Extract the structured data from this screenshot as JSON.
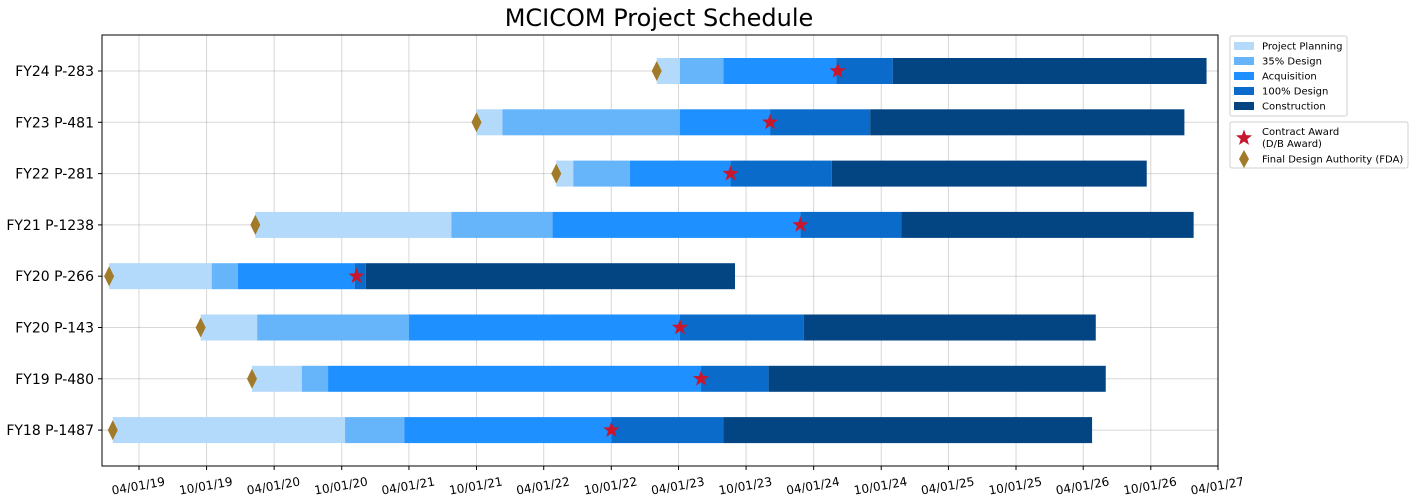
{
  "chart_data": {
    "type": "gantt",
    "title": "MCICOM Project Schedule",
    "xlim": [
      "2019-01-10",
      "2027-04-01"
    ],
    "x_ticks": [
      {
        "date": "2019-04-01",
        "label": "04/01/19"
      },
      {
        "date": "2019-10-01",
        "label": "10/01/19"
      },
      {
        "date": "2020-04-01",
        "label": "04/01/20"
      },
      {
        "date": "2020-10-01",
        "label": "10/01/20"
      },
      {
        "date": "2021-04-01",
        "label": "04/01/21"
      },
      {
        "date": "2021-10-01",
        "label": "10/01/21"
      },
      {
        "date": "2022-04-01",
        "label": "04/01/22"
      },
      {
        "date": "2022-10-01",
        "label": "10/01/22"
      },
      {
        "date": "2023-04-01",
        "label": "04/01/23"
      },
      {
        "date": "2023-10-01",
        "label": "10/01/23"
      },
      {
        "date": "2024-04-01",
        "label": "04/01/24"
      },
      {
        "date": "2024-10-01",
        "label": "10/01/24"
      },
      {
        "date": "2025-04-01",
        "label": "04/01/25"
      },
      {
        "date": "2025-10-01",
        "label": "10/01/25"
      },
      {
        "date": "2026-04-01",
        "label": "04/01/26"
      },
      {
        "date": "2026-10-01",
        "label": "10/01/26"
      },
      {
        "date": "2027-04-01",
        "label": "04/01/27"
      }
    ],
    "phases": [
      {
        "name": "Project Planning",
        "color": "#b3d9fb"
      },
      {
        "name": "35% Design",
        "color": "#66b5fa"
      },
      {
        "name": "Acquisition",
        "color": "#1e90ff"
      },
      {
        "name": "100% Design",
        "color": "#0a6bcb"
      },
      {
        "name": "Construction",
        "color": "#034482"
      }
    ],
    "markers": [
      {
        "name": "Contract Award\n(D/B Award)",
        "shape": "star",
        "color": "#c8172c"
      },
      {
        "name": "Final Design Authority (FDA)",
        "shape": "diamond",
        "color": "#a17b2a"
      }
    ],
    "projects": [
      {
        "label": "FY24 P-283",
        "fda": "2023-02-01",
        "phases": [
          [
            "2023-02-01",
            "2023-04-05"
          ],
          [
            "2023-04-05",
            "2023-08-01"
          ],
          [
            "2023-08-01",
            "2024-06-01"
          ],
          [
            "2024-06-01",
            "2024-11-01"
          ],
          [
            "2024-11-01",
            "2027-03-01"
          ]
        ],
        "award": "2024-06-05"
      },
      {
        "label": "FY23 P-481",
        "fda": "2021-10-01",
        "phases": [
          [
            "2021-10-01",
            "2021-12-10"
          ],
          [
            "2021-12-10",
            "2023-04-05"
          ],
          [
            "2023-04-05",
            "2023-12-05"
          ],
          [
            "2023-12-05",
            "2024-09-01"
          ],
          [
            "2024-09-01",
            "2026-12-31"
          ]
        ],
        "award": "2023-12-05"
      },
      {
        "label": "FY22 P-281",
        "fda": "2022-05-05",
        "phases": [
          [
            "2022-05-05",
            "2022-06-20"
          ],
          [
            "2022-06-20",
            "2022-11-20"
          ],
          [
            "2022-11-20",
            "2023-08-20"
          ],
          [
            "2023-08-20",
            "2024-05-20"
          ],
          [
            "2024-05-20",
            "2026-09-20"
          ]
        ],
        "award": "2023-08-20"
      },
      {
        "label": "FY21 P-1238",
        "fda": "2020-02-10",
        "phases": [
          [
            "2020-02-10",
            "2021-07-25"
          ],
          [
            "2021-07-25",
            "2022-04-25"
          ],
          [
            "2022-04-25",
            "2024-02-25"
          ],
          [
            "2024-02-25",
            "2024-11-25"
          ],
          [
            "2024-11-25",
            "2027-01-25"
          ]
        ],
        "award": "2024-02-25"
      },
      {
        "label": "FY20 P-266",
        "fda": "2019-01-10",
        "phases": [
          [
            "2019-01-10",
            "2019-10-15"
          ],
          [
            "2019-10-15",
            "2019-12-25"
          ],
          [
            "2019-12-25",
            "2020-11-05"
          ],
          [
            "2020-11-05",
            "2020-12-05"
          ],
          [
            "2020-12-05",
            "2023-09-01"
          ]
        ],
        "award": "2020-11-10"
      },
      {
        "label": "FY20 P-143",
        "fda": "2019-09-15",
        "phases": [
          [
            "2019-09-15",
            "2020-02-15"
          ],
          [
            "2020-02-15",
            "2021-04-01"
          ],
          [
            "2021-04-01",
            "2023-04-05"
          ],
          [
            "2023-04-05",
            "2024-03-05"
          ],
          [
            "2024-03-05",
            "2026-05-05"
          ]
        ],
        "award": "2023-04-05"
      },
      {
        "label": "FY19 P-480",
        "fda": "2020-02-01",
        "phases": [
          [
            "2020-02-01",
            "2020-06-15"
          ],
          [
            "2020-06-15",
            "2020-08-25"
          ],
          [
            "2020-08-25",
            "2023-06-01"
          ],
          [
            "2023-06-01",
            "2023-12-01"
          ],
          [
            "2023-12-01",
            "2026-06-01"
          ]
        ],
        "award": "2023-06-01"
      },
      {
        "label": "FY18 P-1487",
        "fda": "2019-01-20",
        "phases": [
          [
            "2019-01-20",
            "2020-10-10"
          ],
          [
            "2020-10-10",
            "2021-03-20"
          ],
          [
            "2021-03-20",
            "2022-10-01"
          ],
          [
            "2022-10-01",
            "2023-08-01"
          ],
          [
            "2023-08-01",
            "2026-04-25"
          ]
        ],
        "award": "2022-10-01"
      }
    ]
  }
}
